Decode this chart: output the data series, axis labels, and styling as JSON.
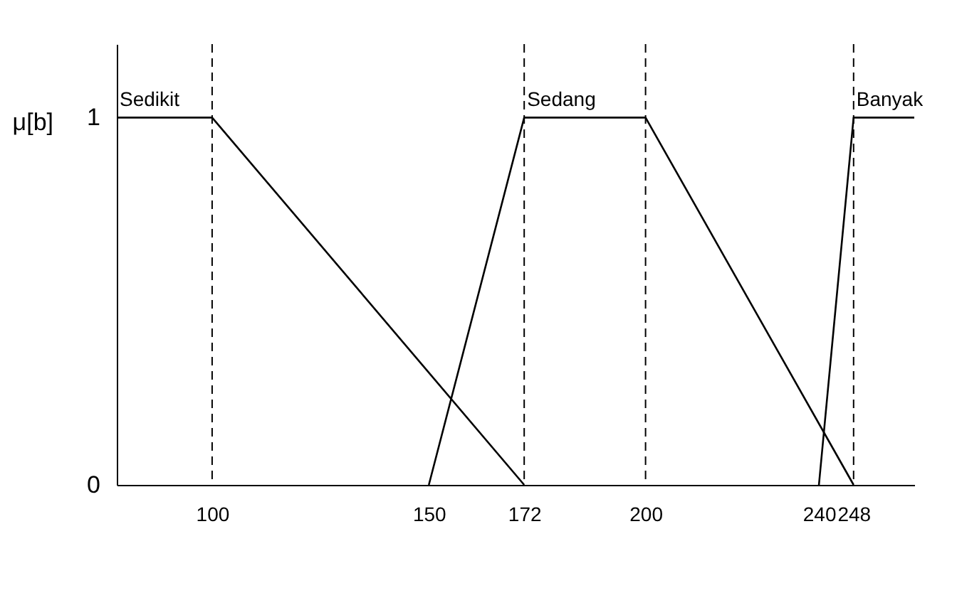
{
  "chart_data": {
    "type": "line",
    "ylabel": "μ[b]",
    "xlim": [
      78,
      262
    ],
    "ylim": [
      0,
      1.2
    ],
    "xticks": [
      100,
      150,
      172,
      200,
      240,
      248
    ],
    "yticks": [
      0,
      1
    ],
    "grid": false,
    "legend": false,
    "marker": "none",
    "line_style": "solid",
    "series": [
      {
        "name": "Sedikit",
        "color": "#000000",
        "x": [
          78,
          100,
          172
        ],
        "values": [
          1,
          1,
          0
        ]
      },
      {
        "name": "Sedang",
        "color": "#000000",
        "x": [
          150,
          172,
          200,
          248
        ],
        "values": [
          0,
          1,
          1,
          0
        ]
      },
      {
        "name": "Banyak",
        "color": "#000000",
        "x": [
          240,
          248,
          262
        ],
        "values": [
          0,
          1,
          1
        ]
      }
    ],
    "ref_lines": [
      {
        "axis": "x",
        "value": 100,
        "line_style": "dashed",
        "color": "#000000"
      },
      {
        "axis": "x",
        "value": 172,
        "line_style": "dashed",
        "color": "#000000"
      },
      {
        "axis": "x",
        "value": 200,
        "line_style": "dashed",
        "color": "#000000"
      },
      {
        "axis": "x",
        "value": 248,
        "line_style": "dashed",
        "color": "#000000"
      }
    ]
  }
}
